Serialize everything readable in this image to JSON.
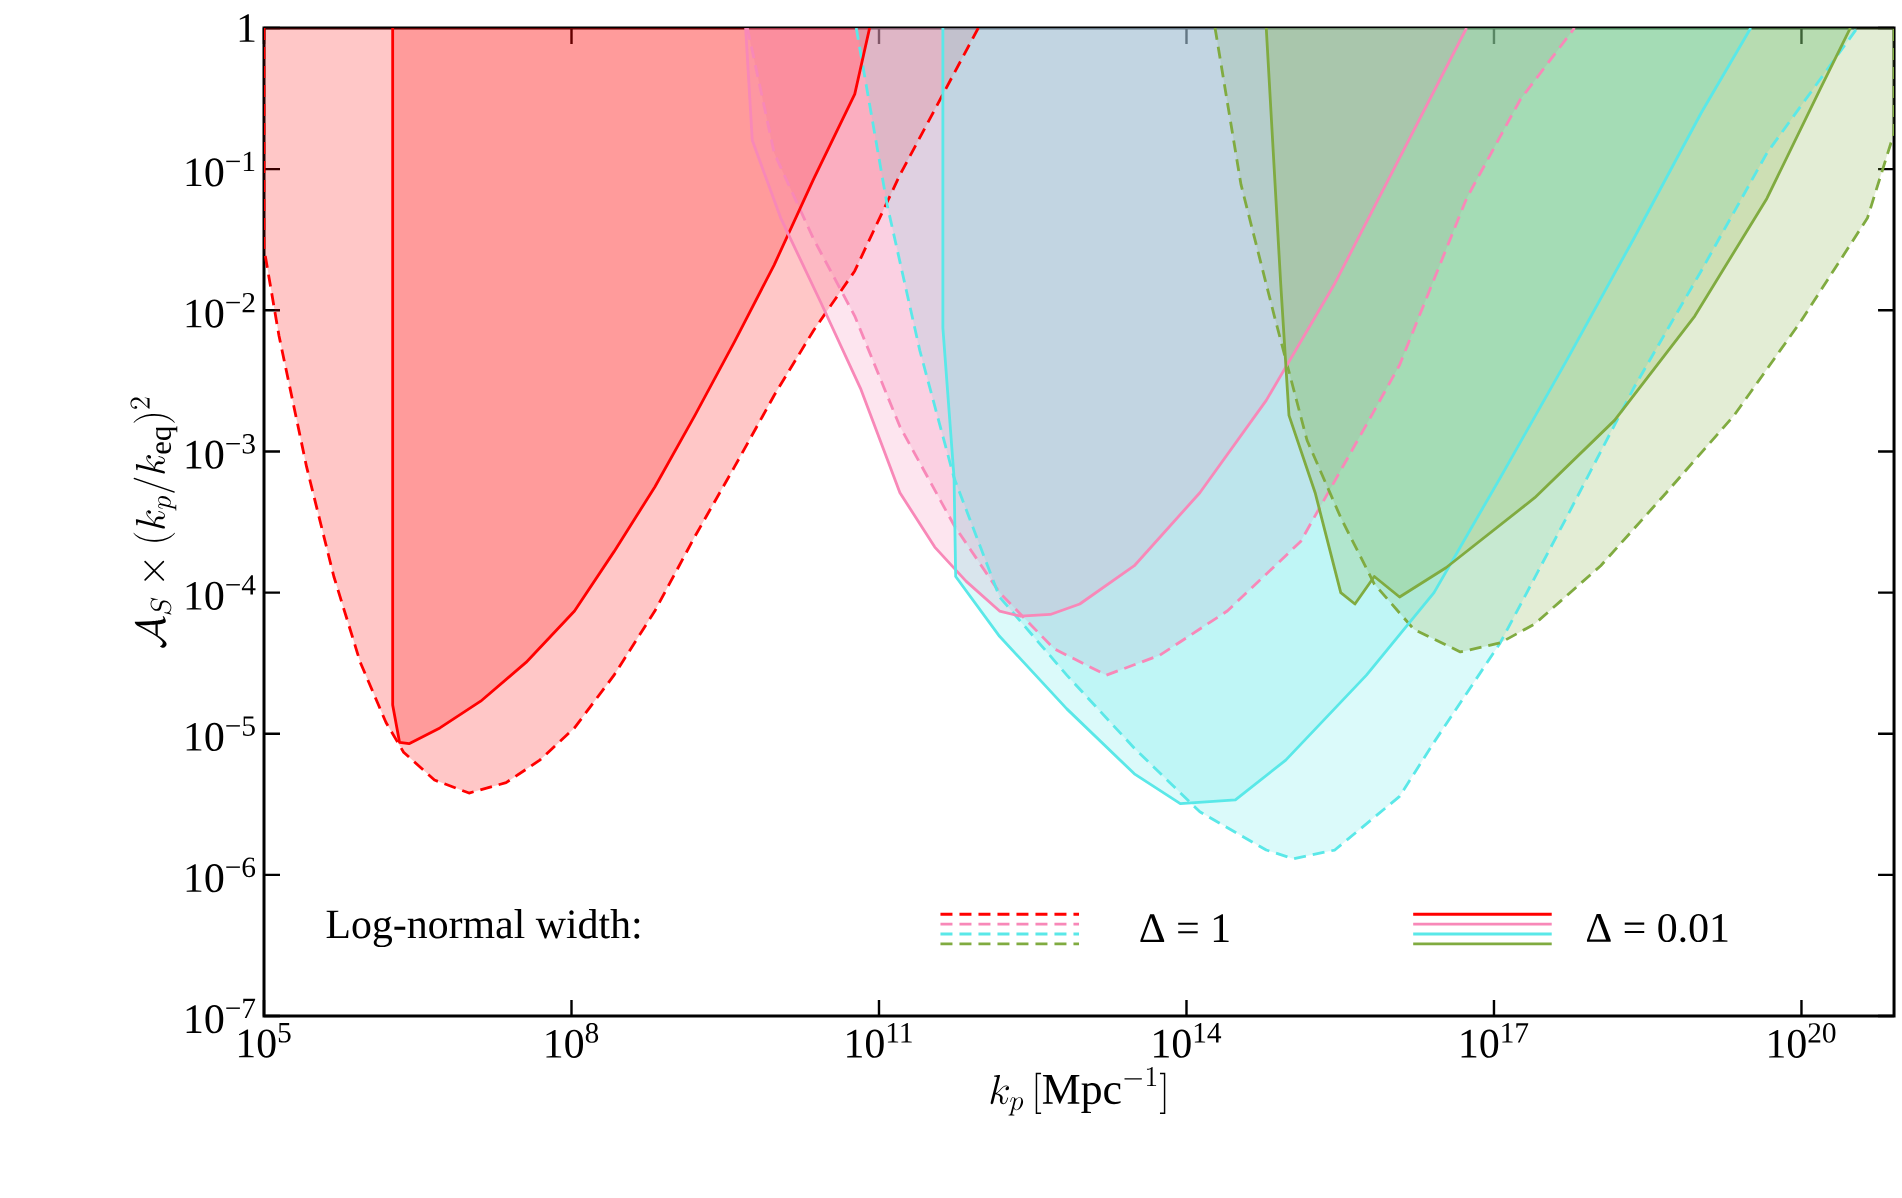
{
  "chart_data": {
    "type": "area",
    "xlabel": "k_p\\,[\\mathrm{Mpc}^{-1}]",
    "ylabel": "\\mathcal{A}_S \\times (k_p/k_{\\mathrm{eq}})^2",
    "legend_title": "Log-normal width:",
    "legend": "bottom",
    "log": "xy",
    "xlim": [
      100000.0,
      8e+20
    ],
    "ylim": [
      1e-07,
      1
    ],
    "xticks": [
      {
        "value": 100000.0,
        "label": "10$^{5}$"
      },
      {
        "value": 100000000.0,
        "label": "10$^{8}$"
      },
      {
        "value": 100000000000.0,
        "label": "10$^{11}$"
      },
      {
        "value": 100000000000000.0,
        "label": "10$^{14}$"
      },
      {
        "value": 1e+17,
        "label": "10$^{17}$"
      },
      {
        "value": 1e+20,
        "label": "10$^{20}$"
      }
    ],
    "yticks": [
      1,
      {
        "value": 0.1,
        "label": "10$^{−1}$"
      },
      {
        "value": 0.01,
        "label": "10$^{−2}$"
      },
      {
        "value": 0.001,
        "label": "10$^{−3}$"
      },
      {
        "value": 0.0001,
        "label": "10$^{−4}$"
      },
      {
        "value": 1e-05,
        "label": "10$^{−5}$"
      },
      {
        "value": 1e-06,
        "label": "10$^{−6}$"
      },
      {
        "value": 1e-07,
        "label": "10$^{−7}$"
      }
    ],
    "series": [
      {
        "name": "Δ = 1",
        "color": "#ff0000",
        "line_style": "dashed",
        "x": [
          100000.0,
          100000.0,
          140000.0,
          260000.0,
          480000.0,
          870000.0,
          1550000.0,
          2300000.0,
          4600000.0,
          10000000.0,
          23000000.0,
          49000000.0,
          107000000.0,
          260000000.0,
          650000000.0,
          1600000000.0,
          3900000000.0,
          9500000000.0,
          23000000000.0,
          58000000000.0,
          160000000000.0,
          930000000000.0
        ],
        "values": [
          1,
          0.0275,
          0.0066,
          0.00078,
          0.00013,
          3.2e-05,
          1.2e-05,
          7.4e-06,
          4.7e-06,
          3.8e-06,
          4.5e-06,
          6.5e-06,
          1.1e-05,
          2.6e-05,
          7.4e-05,
          0.00025,
          0.00078,
          0.0025,
          0.0072,
          0.019,
          0.091,
          1
        ]
      },
      {
        "color": "#f888b8",
        "line_style": "dashed",
        "x": [
          5200000000.0,
          9500000000.0,
          23000000000.0,
          58000000000.0,
          160000000000.0,
          540000000000.0,
          1500000000000.0,
          5100000000000.0,
          16500000000000.0,
          55000000000000.0,
          250000000000000.0,
          1300000000000000.0,
          5700000000000000.0,
          1.2e+16,
          5.4e+16,
          1.8e+17,
          6.1e+17
        ],
        "values": [
          1,
          0.13,
          0.032,
          0.0091,
          0.0015,
          0.0003,
          0.0001,
          4e-05,
          2.6e-05,
          3.6e-05,
          7.4e-05,
          0.00023,
          0.00155,
          0.0041,
          0.062,
          0.31,
          1
        ]
      },
      {
        "color": "#5ae8e8",
        "line_style": "dashed",
        "x": [
          60000000000.0,
          120000000000.0,
          250000000000.0,
          540000000000.0,
          1500000000000.0,
          6800000000000.0,
          31000000000000.0,
          135000000000000.0,
          600000000000000.0,
          1100000000000000.0,
          2800000000000000.0,
          1.2e+16,
          2.6e+16,
          1.15e+17,
          5.1e+17,
          2.3e+18,
          1.05e+19,
          4.6e+19,
          3.5e+20
        ],
        "values": [
          1,
          0.056,
          0.0052,
          0.00065,
          9.3e-05,
          2.6e-05,
          7.9e-06,
          2.8e-06,
          1.5e-06,
          1.3e-06,
          1.5e-06,
          3.6e-06,
          8.7e-06,
          4.4e-05,
          0.00034,
          0.0028,
          0.019,
          0.13,
          1
        ]
      },
      {
        "color": "#80ab40",
        "line_style": "dashed",
        "x": [
          190000000000000.0,
          340000000000000.0,
          720000000000000.0,
          1500000000000000.0,
          3200000000000000.0,
          6800000000000000.0,
          1.65e+16,
          4.7e+16,
          1.15e+17,
          2.5e+17,
          1.1e+18,
          4.8e+18,
          2.2e+19,
          9.8e+19,
          4.4e+20,
          8e+20,
          8e+20
        ],
        "values": [
          1,
          0.078,
          0.0091,
          0.0012,
          0.00034,
          0.000115,
          5.5e-05,
          3.8e-05,
          4.4e-05,
          6e-05,
          0.000155,
          0.00051,
          0.0018,
          0.0083,
          0.045,
          0.18,
          1
        ]
      },
      {
        "name": "Δ = 0.01",
        "color": "#ff0000",
        "line_style": "solid",
        "x": [
          1800000.0,
          1800000.0,
          2100000.0,
          2600000.0,
          5200000.0,
          13000000.0,
          36000000.0,
          107000000.0,
          260000000.0,
          650000000.0,
          1600000000.0,
          3900000000.0,
          9500000000.0,
          23000000000.0,
          58000000000.0,
          81000000000.0
        ],
        "values": [
          1,
          1.6e-05,
          8.7e-06,
          8.5e-06,
          1.1e-05,
          1.7e-05,
          3.2e-05,
          7.4e-05,
          0.000195,
          0.00056,
          0.0018,
          0.006,
          0.021,
          0.085,
          0.34,
          1
        ]
      },
      {
        "color": "#f888b8",
        "line_style": "solid",
        "x": [
          5000000000.0,
          5800000000.0,
          11000000000.0,
          27000000000.0,
          66000000000.0,
          160000000000.0,
          350000000000.0,
          710000000000.0,
          1500000000000.0,
          2400000000000.0,
          4700000000000.0,
          9100000000000.0,
          31000000000000.0,
          135000000000000.0,
          600000000000000.0,
          2800000000000000.0,
          1.2e+16,
          5.4e+16
        ],
        "values": [
          1,
          0.16,
          0.045,
          0.0114,
          0.0028,
          0.00051,
          0.00021,
          0.00012,
          7.4e-05,
          6.8e-05,
          7e-05,
          8.3e-05,
          0.000155,
          0.00051,
          0.0023,
          0.0155,
          0.12,
          1
        ]
      },
      {
        "color": "#5ae8e8",
        "line_style": "solid",
        "x": [
          420000000000.0,
          420000000000.0,
          540000000000.0,
          560000000000.0,
          1500000000000.0,
          6800000000000.0,
          31000000000000.0,
          87000000000000.0,
          300000000000000.0,
          930000000000000.0,
          5700000000000000.0,
          2.6e+16,
          1.15e+17,
          5.1e+17,
          2.3e+18,
          1.05e+19,
          3.2e+19
        ],
        "values": [
          1,
          0.0075,
          0.00065,
          0.00013,
          4.9e-05,
          1.5e-05,
          5.2e-06,
          3.2e-06,
          3.4e-06,
          6.5e-06,
          2.6e-05,
          0.0001,
          0.00065,
          0.0044,
          0.032,
          0.25,
          1
        ]
      },
      {
        "color": "#80ab40",
        "line_style": "solid",
        "x": [
          600000000000000.0,
          830000000000000.0,
          1000000000000000.0,
          1800000000000000.0,
          3200000000000000.0,
          4400000000000000.0,
          6800000000000000.0,
          1.2e+16,
          3.4e+16,
          2.5e+17,
          1.5e+18,
          9.1e+18,
          4.6e+19,
          1.55e+20,
          3e+20
        ],
        "values": [
          1,
          0.0155,
          0.0018,
          0.00051,
          0.0001,
          8.3e-05,
          0.00013,
          9.3e-05,
          0.00015,
          0.00047,
          0.00166,
          0.0091,
          0.062,
          0.38,
          1
        ]
      }
    ]
  }
}
